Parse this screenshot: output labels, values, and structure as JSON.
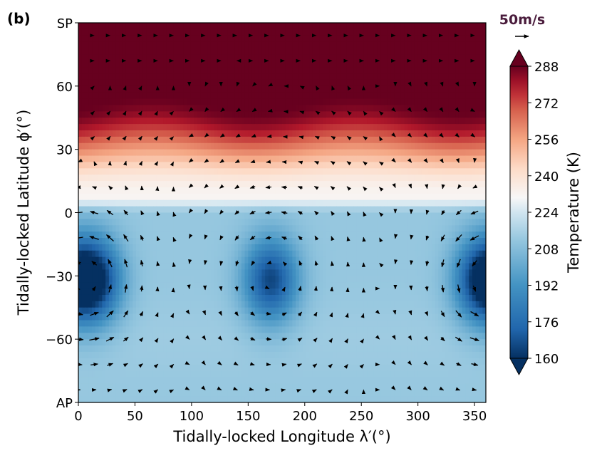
{
  "panel_label": "(b)",
  "chart_data": {
    "type": "heatmap",
    "title": "",
    "panel": "(b)",
    "xlabel": "Tidally-locked Longitude λ′(°)",
    "ylabel": "Tidally-locked Latitude ϕ′(°)",
    "xlim": [
      0,
      360
    ],
    "ylim": [
      -90,
      90
    ],
    "x_ticks": [
      0,
      50,
      100,
      150,
      200,
      250,
      300,
      350
    ],
    "x_tick_labels": [
      "0",
      "50",
      "100",
      "150",
      "200",
      "250",
      "300",
      "350"
    ],
    "y_ticks": [
      90,
      60,
      30,
      0,
      -30,
      -60,
      -90
    ],
    "y_tick_labels": [
      "SP",
      "60",
      "30",
      "0",
      "−30",
      "−60",
      "AP"
    ],
    "colorbar": {
      "label": "Temperature (K)",
      "min": 160,
      "max": 288,
      "ticks": [
        288,
        272,
        256,
        240,
        224,
        208,
        192,
        176,
        160
      ],
      "extend": "both",
      "colormap": "RdBu_r"
    },
    "temperature_features": [
      {
        "description": "cold vortex",
        "lon": 15,
        "lat": -32,
        "temperature": 165
      },
      {
        "description": "cold vortex",
        "lon": 170,
        "lat": -32,
        "temperature": 165
      },
      {
        "description": "cold vortex",
        "lon": 355,
        "lat": -32,
        "temperature": 168
      },
      {
        "lat_band": [
          45,
          90
        ],
        "temperature": 288
      },
      {
        "lat_band": [
          10,
          40
        ],
        "temperature_range": [
          232,
          280
        ]
      },
      {
        "lat_band": [
          -90,
          0
        ],
        "background_temperature": 212
      }
    ],
    "wind_key": {
      "label": "50m/s",
      "speed": 50,
      "color": "#4a1c3c"
    }
  }
}
